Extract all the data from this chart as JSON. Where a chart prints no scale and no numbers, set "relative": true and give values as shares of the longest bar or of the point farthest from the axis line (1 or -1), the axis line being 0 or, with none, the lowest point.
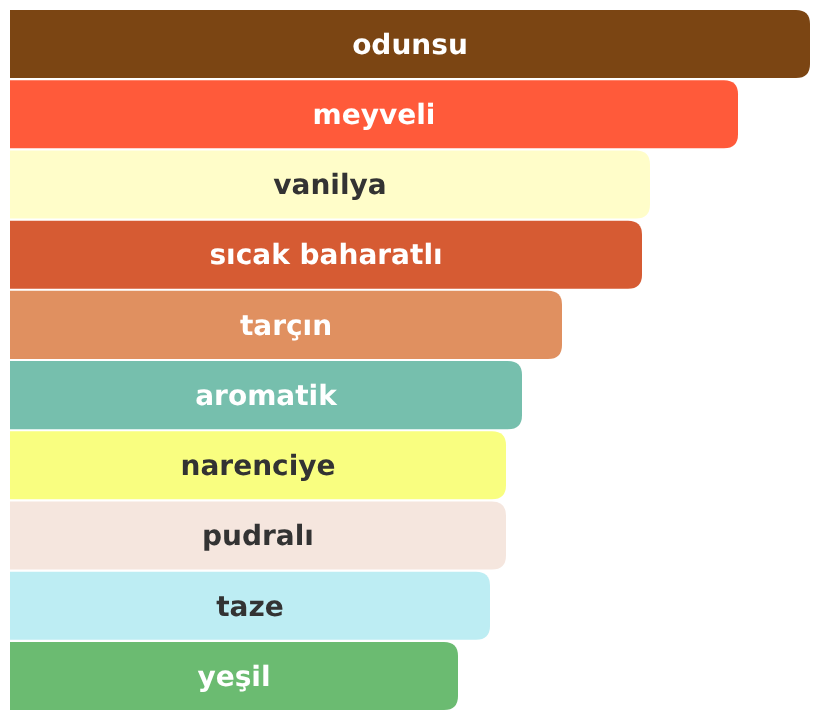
{
  "chart_data": {
    "type": "bar",
    "orientation": "horizontal",
    "relative": true,
    "categories": [
      "odunsu",
      "meyveli",
      "vanilya",
      "sıcak baharatlı",
      "tarçın",
      "aromatik",
      "narenciye",
      "pudralı",
      "taze",
      "yeşil"
    ],
    "values": [
      1,
      0.91,
      0.8,
      0.79,
      0.69,
      0.64,
      0.62,
      0.62,
      0.6,
      0.56
    ],
    "colors": [
      "#7b4513",
      "#ff5a3a",
      "#fffdc9",
      "#d65b33",
      "#e09060",
      "#76bfad",
      "#f9fe80",
      "#f5e6de",
      "#bdedf3",
      "#6bbb71"
    ]
  }
}
